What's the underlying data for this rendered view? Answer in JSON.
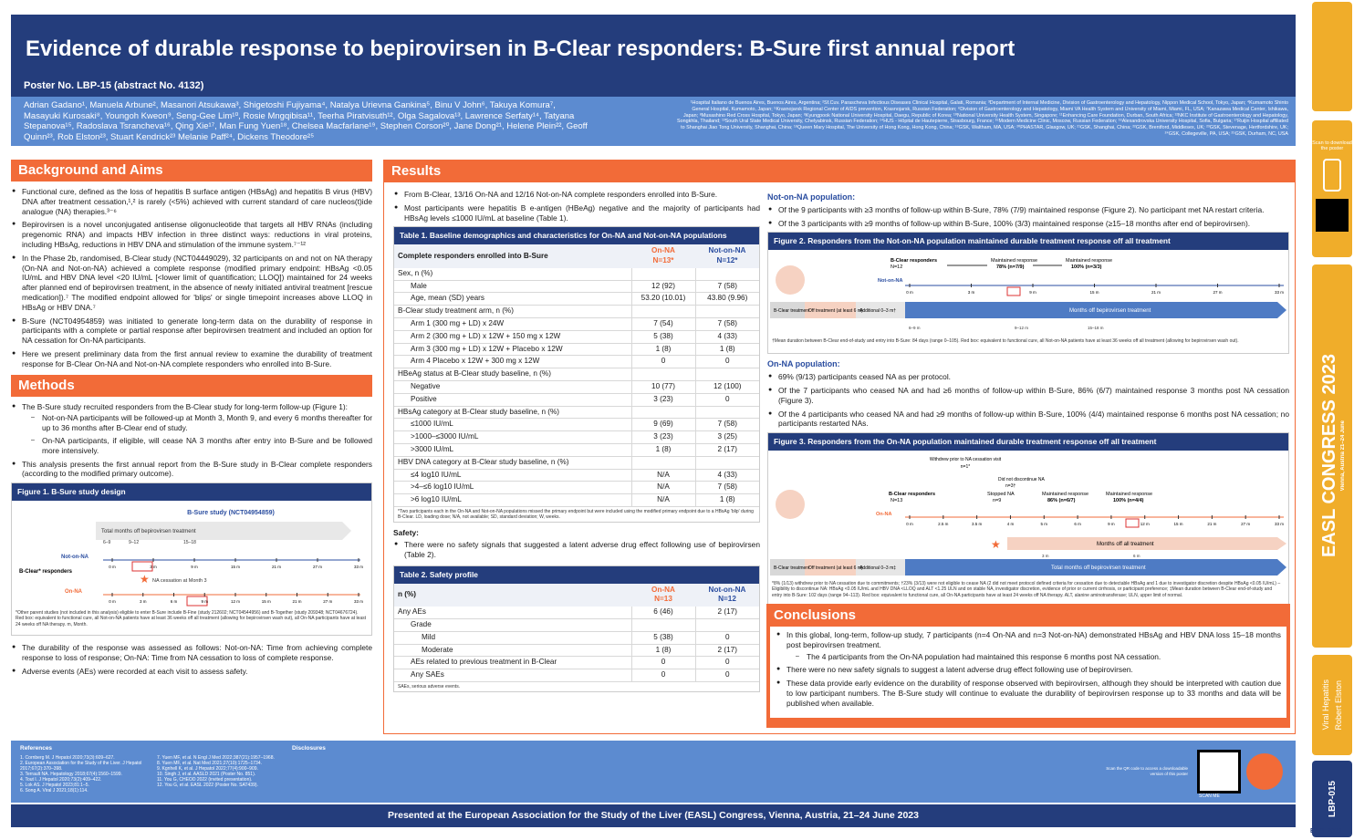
{
  "title": "Evidence of durable response to bepirovirsen in B-Clear responders: B-Sure first annual report",
  "poster_no": "Poster No. LBP-15 (abstract No. 4132)",
  "authors": "Adrian Gadano¹, Manuela Arbune², Masanori Atsukawa³, Shigetoshi Fujiyama⁴, Natalya Urievna Gankina⁵, Binu V John⁶, Takuya Komura⁷, Masayuki Kurosaki⁸, Youngoh Kweon⁹, Seng-Gee Lim¹⁰, Rosie Mngqibisa¹¹, Teerha Piratvisuth¹², Olga Sagalova¹³, Lawrence Serfaty¹⁴, Tatyana Stepanova¹⁵, Radoslava Tsrancheva¹⁶, Qing Xie¹⁷, Man Fung Yuen¹⁸, Chelsea Macfarlane¹⁹, Stephen Corson²⁰, Jane Dong²¹, Helene Plein²², Geoff Quinn²³, Rob Elston²³, Stuart Kendrick²³ Melanie Paff²⁴, Dickens Theodore²⁵",
  "affiliations": "¹Hospital Italiano de Buenos Aires, Buenos Aires, Argentina; ²Sf.Cuv. Parascheva Infectious Diseases Clinical Hospital, Galati, Romania; ³Department of Internal Medicine, Division of Gastroenterology and Hepatology, Nippon Medical School, Tokyo, Japan; ⁴Kumamoto Shinto General Hospital, Kumamoto, Japan; ⁵Krasnojarsk Regional Center of AIDS prevention, Krasnojarsk, Russian Federation; ⁶Division of Gastroenterology and Hepatology, Miami VA Health System and University of Miami, Miami, FL, USA; ⁷Kanazawa Medical Center, Ishikawa, Japan; ⁸Musashino Red Cross Hospital, Tokyo, Japan; ⁹Kyungpook National University Hospital, Daegu, Republic of Korea; ¹⁰National University Health System, Singapore; ¹¹Enhancing Care Foundation, Durban, South Africa; ¹²NKC Institute of Gastroenterology and Hepatology, Songkhla, Thailand; ¹³South Ural State Medical University, Chelyabinsk, Russian Federation; ¹⁴HUS - Hôpital de Hautepierre, Strasbourg, France; ¹⁵Modern Medicine Clinic, Moscow, Russian Federation; ¹⁶Alexandrovska University Hospital, Sofia, Bulgaria; ¹⁷Ruijin Hospital affiliated to Shanghai Jiao Tong University, Shanghai, China; ¹⁸Queen Mary Hospital, The University of Hong Kong, Hong Kong, China; ¹⁹GSK, Waltham, MA, USA; ²⁰PHASTAR, Glasgow, UK; ²¹GSK, Shanghai, China; ²²GSK, Brentford, Middlesex, UK; ²³GSK, Stevenage, Hertfordshire, UK; ²⁴GSK, Collegeville, PA, USA; ²⁵GSK, Durham, NC, USA",
  "background": {
    "title": "Background and Aims",
    "items": [
      "Functional cure, defined as the loss of hepatitis B surface antigen (HBsAg) and hepatitis B virus (HBV) DNA after treatment cessation,¹,² is rarely (<5%) achieved with current standard of care nucleos(t)ide analogue (NA) therapies.³⁻⁶",
      "Bepirovirsen is a novel unconjugated antisense oligonucleotide that targets all HBV RNAs (including pregenomic RNA) and impacts HBV infection in three distinct ways: reductions in viral proteins, including HBsAg, reductions in HBV DNA and stimulation of the immune system.⁷⁻¹²",
      "In the Phase 2b, randomised, B-Clear study (NCT04449029), 32 participants on and not on NA therapy (On-NA and Not-on-NA) achieved a complete response (modified primary endpoint: HBsAg <0.05 IU/mL and HBV DNA level <20 IU/mL [<lower limit of quantification; LLOQ]) maintained for 24 weeks after planned end of bepirovirsen treatment, in the absence of newly initiated antiviral treatment [rescue medication]).⁷ The modified endpoint allowed for 'blips' or single timepoint increases above LLOQ in HBsAg or HBV DNA.⁷",
      "B-Sure (NCT04954859) was initiated to generate long-term data on the durability of response in participants with a complete or partial response after bepirovirsen treatment and included an option for NA cessation for On-NA participants.",
      "Here we present preliminary data from the first annual review to examine the durability of treatment response for B-Clear On-NA and Not-on-NA complete responders who enrolled into B-Sure."
    ]
  },
  "methods": {
    "title": "Methods",
    "item1": "The B-Sure study recruited responders from the B-Clear study for long-term follow-up (Figure 1):",
    "sub1": "Not-on-NA participants will be followed-up at Month 3, Month 9, and every 6 months thereafter for up to 36 months after B-Clear end of study.",
    "sub2": "On-NA participants, if eligible, will cease NA 3 months after entry into B-Sure and be followed more intensively.",
    "item2": "This analysis presents the first annual report from the B-Sure study in B-Clear complete responders (according to the modified primary outcome).",
    "item3": "The durability of the response was assessed as follows: Not-on-NA: Time from achieving complete response to loss of response; On-NA: Time from NA cessation to loss of complete response.",
    "item4": "Adverse events (AEs) were recorded at each visit to assess safety."
  },
  "fig1": {
    "title": "Figure 1. B-Sure study design",
    "study": "B-Sure study (NCT04954859)",
    "bar": "Total months off bepirovirsen treatment",
    "ranges": [
      "6–9",
      "9–12",
      "15–18"
    ],
    "not_on_na": "Not-on-NA",
    "on_na": "On-NA",
    "responders": "B-Clear* responders",
    "cessation": "NA cessation at Month 3",
    "ticks": [
      "0 m",
      "3 m",
      "9 m",
      "15 m",
      "21 m",
      "27 m",
      "33 m"
    ],
    "ticks2": [
      "0 m",
      "3 m",
      "6 m",
      "9 m",
      "12 m",
      "15 m",
      "21 m",
      "27 m",
      "33 m"
    ],
    "foot": "*Other parent studies (not included in this analysis) eligible to enter B-Sure include B-Fine (study 212602; NCT04544956) and B-Together (study 209348; NCT04676724). Red box: equivalent to functional cure, all Not-on-NA patients have at least 36 weeks off all treatment (allowing for bepirovirsen wash out), all On-NA participants have at least 24 weeks off NA therapy. m, Month."
  },
  "results": {
    "title": "Results",
    "items": [
      "From B-Clear, 13/16 On-NA and 12/16 Not-on-NA complete responders enrolled into B-Sure.",
      "Most participants were hepatitis B e-antigen (HBeAg) negative and the majority of participants had HBsAg levels ≤1000 IU/mL at baseline (Table 1)."
    ]
  },
  "table1": {
    "title": "Table 1. Baseline demographics and characteristics for On-NA and Not-on-NA populations",
    "h": "Complete responders enrolled into B-Sure",
    "on": "On-NA",
    "on_n": "N=13*",
    "non": "Not-on-NA",
    "non_n": "N=12*",
    "rows": [
      [
        "Sex, n (%)",
        "",
        ""
      ],
      [
        "Male",
        "12 (92)",
        "7 (58)"
      ],
      [
        "Age, mean (SD) years",
        "53.20 (10.01)",
        "43.80 (9.96)"
      ],
      [
        "B-Clear study treatment arm, n (%)",
        "",
        ""
      ],
      [
        "Arm 1 (300 mg + LD) x 24W",
        "7 (54)",
        "7 (58)"
      ],
      [
        "Arm 2 (300 mg + LD) x 12W + 150 mg x 12W",
        "5 (38)",
        "4 (33)"
      ],
      [
        "Arm 3 (300 mg + LD) x 12W + Placebo x 12W",
        "1 (8)",
        "1 (8)"
      ],
      [
        "Arm 4 Placebo x 12W + 300 mg x 12W",
        "0",
        "0"
      ],
      [
        "HBeAg status at B-Clear study baseline, n (%)",
        "",
        ""
      ],
      [
        "Negative",
        "10 (77)",
        "12 (100)"
      ],
      [
        "Positive",
        "3 (23)",
        "0"
      ],
      [
        "HBsAg category at B-Clear study baseline, n (%)",
        "",
        ""
      ],
      [
        "≤1000 IU/mL",
        "9 (69)",
        "7 (58)"
      ],
      [
        ">1000–≤3000 IU/mL",
        "3 (23)",
        "3 (25)"
      ],
      [
        ">3000 IU/mL",
        "1 (8)",
        "2 (17)"
      ],
      [
        "HBV DNA category at B-Clear study baseline, n (%)",
        "",
        ""
      ],
      [
        "≤4 log10 IU/mL",
        "N/A",
        "4 (33)"
      ],
      [
        ">4–≤6 log10 IU/mL",
        "N/A",
        "7 (58)"
      ],
      [
        ">6 log10 IU/mL",
        "N/A",
        "1 (8)"
      ]
    ],
    "foot": "*Two participants each in the On-NA and Not-on-NA populations missed the primary endpoint but were included using the modified primary endpoint due to a HBsAg 'blip' during B-Clear. LD, loading dose; N/A, not available; SD, standard deviation; W, weeks."
  },
  "safety": {
    "title": "Safety:",
    "item": "There were no safety signals that suggested a latent adverse drug effect following use of bepirovirsen (Table 2)."
  },
  "table2": {
    "title": "Table 2. Safety profile",
    "h": "n (%)",
    "on": "On-NA",
    "on_n": "N=13",
    "non": "Not-on-NA",
    "non_n": "N=12",
    "rows": [
      [
        "Any AEs",
        "6 (46)",
        "2 (17)"
      ],
      [
        "Grade",
        "",
        ""
      ],
      [
        "Mild",
        "5 (38)",
        "0"
      ],
      [
        "Moderate",
        "1 (8)",
        "2 (17)"
      ],
      [
        "AEs related to previous treatment in B-Clear",
        "0",
        "0"
      ],
      [
        "Any SAEs",
        "0",
        "0"
      ]
    ],
    "foot": "SAEs, serious adverse events."
  },
  "notna": {
    "title": "Not-on-NA population:",
    "items": [
      "Of the 9 participants with ≥3 months of follow-up within B-Sure, 78% (7/9) maintained response (Figure 2). No participant met NA restart criteria.",
      "Of the 3 participants with ≥9 months of follow-up within B-Sure, 100% (3/3) maintained response (≥15–18 months after end of bepirovirsen)."
    ]
  },
  "fig2": {
    "title": "Figure 2. Responders from the Not-on-NA population maintained durable treatment response off all treatment",
    "resp": "B-Clear responders",
    "n": "N=12",
    "m1": "Maintained response",
    "v1": "78% (n=7/9)",
    "m2": "Maintained response",
    "v2": "100% (n=3/3)",
    "label": "Not-on-NA",
    "ticks": [
      "0 m",
      "3 m",
      "9 m",
      "15 m",
      "21 m",
      "27 m",
      "33 m"
    ],
    "s1": "B-Clear treatment",
    "s2": "Off treatment (at least 6 m)",
    "s3": "Additional 0–3 m†",
    "s4": "Months off bepirovirsen treatment",
    "r": [
      "6–9 m",
      "9–12 m",
      "15–18 m"
    ],
    "foot": "†Mean duration between B-Clear end-of-study and entry into B-Sure: 84 days (range 0–105). Red box: equivalent to functional cure, all Not-on-NA patients have at least 36 weeks off all treatment (allowing for bepirovirsen wash out)."
  },
  "onna": {
    "title": "On-NA population:",
    "items": [
      "69% (9/13) participants ceased NA as per protocol.",
      "Of the 7 participants who ceased NA and had ≥6 months of follow-up within B-Sure, 86% (6/7) maintained response 3 months post NA cessation (Figure 3).",
      "Of the 4 participants who ceased NA and had ≥9 months of follow-up within B-Sure, 100% (4/4) maintained response 6 months post NA cessation; no participants restarted NAs."
    ]
  },
  "fig3": {
    "title": "Figure 3. Responders from the On-NA population maintained durable treatment response off all treatment",
    "w": "Withdrew prior to NA cessation visit",
    "w_n": "n=1*",
    "d": "Did not discontinue NA",
    "d_n": "n=3†",
    "resp": "B-Clear responders",
    "n": "N=13",
    "stop": "Stopped NA",
    "stop_n": "n=9",
    "m1": "Maintained response",
    "v1": "86% (n=6/7)",
    "m2": "Maintained response",
    "v2": "100% (n=4/4)",
    "label": "On-NA",
    "ticks": [
      "0 m",
      "2.5 m",
      "3.5 m",
      "4 m",
      "5 m",
      "6 m",
      "9 m",
      "12 m",
      "15 m",
      "21 m",
      "27 m",
      "33 m"
    ],
    "off_all": "Months off all treatment",
    "r3": "3 m",
    "r6": "6 m",
    "s1": "B-Clear treatment",
    "s2": "Off treatment (at least 6 m)",
    "s3": "Additional 0–3 m‡",
    "s4": "Total months off bepirovirsen treatment",
    "r": [
      "6–9 m",
      "9–12 m",
      "15–18 m"
    ],
    "foot": "*8% (1/13) withdrew prior to NA cessation due to commitments; †23% (3/13) were not eligible to cease NA (2 did not meet protocol defined criteria for cessation due to detectable HBsAg and 1 due to investigator discretion despite HBsAg <0.05 IU/mL) – Eligibility to discontinue NA: HBsAg <0.05 IU/mL and HBV DNA <LLOQ and ALT <1.25 ULN and on stable NA, investigator discretion, evidence of prior or current cirrhosis, or participant preference; ‡Mean duration between B-Clear end-of-study and entry into B-Sure: 102 days (range 94–113). Red box: equivalent to functional cure, all On-NA participants have at least 24 weeks off NA therapy. ALT, alanine aminotransferase; ULN, upper limit of normal."
  },
  "conclusions": {
    "title": "Conclusions",
    "items": [
      "In this global, long-term, follow-up study, 7 participants (n=4 On-NA and n=3 Not-on-NA) demonstrated HBsAg and HBV DNA loss 15–18 months post bepirovirsen treatment.",
      "There were no new safety signals to suggest a latent adverse drug effect following use of bepirovirsen.",
      "These data provide early evidence on the durability of response observed with bepirovirsen, although they should be interpreted with caution due to low participant numbers. The B-Sure study will continue to evaluate the durability of bepirovirsen response up to 33 months and data will be published when available."
    ],
    "sub": "The 4 participants from the On-NA population had maintained this response 6 months post NA cessation."
  },
  "refs": {
    "title": "References",
    "disc": "Disclosures",
    "list": [
      "1. Cornberg M. J Hepatol 2020;73(3):609–627.",
      "2. European Association for the Study of the Liver. J Hepatol 2017;67(2):370–398.",
      "3. Terrault NA. Hepatology 2018;67(4):1560–1599.",
      "4. Tout I. J Hepatol 2020;73(2):409–422.",
      "5. Lok AS. J Hepatol 2023;81:1–5.",
      "6. Song A. Viral J 2021;18(1):114.",
      "7. Yuen MF, et al. N Engl J Med 2022;387(21):1957–1968.",
      "8. Yuen MF, et al. Nat Med 2021;27(10):1725–1734.",
      "9. Kgnhell K, et al. J Hepatol 2022;77(4):900–909.",
      "10. Singh J, et al. AASLD 2021 (Poster No. 851).",
      "11. You G, CHEOD 2022 (invited presentation).",
      "12. You G, et al. EASL 2022 (Poster No. SAT439)."
    ]
  },
  "footer": "Presented at the European Association for the Study of the Liver (EASL) Congress, Vienna, Austria, 21–24 June 2023",
  "rail": {
    "scan": "Scan to download the poster",
    "congress": "EASL CONGRESS 2023",
    "city": "Vienna, Austria 21–24 June",
    "topic": "Viral Hepatitis",
    "author": "Robert Elston",
    "code": "LBP-015",
    "easl": "EASL2023",
    "scan_me": "SCAN ME",
    "qr_text": "Scan the QR code to access a downloadable version of this poster"
  },
  "colors": {
    "navy": "#243d7c",
    "orange": "#f26b38",
    "blue": "#5c8bd0",
    "gold": "#f0ad2a"
  }
}
